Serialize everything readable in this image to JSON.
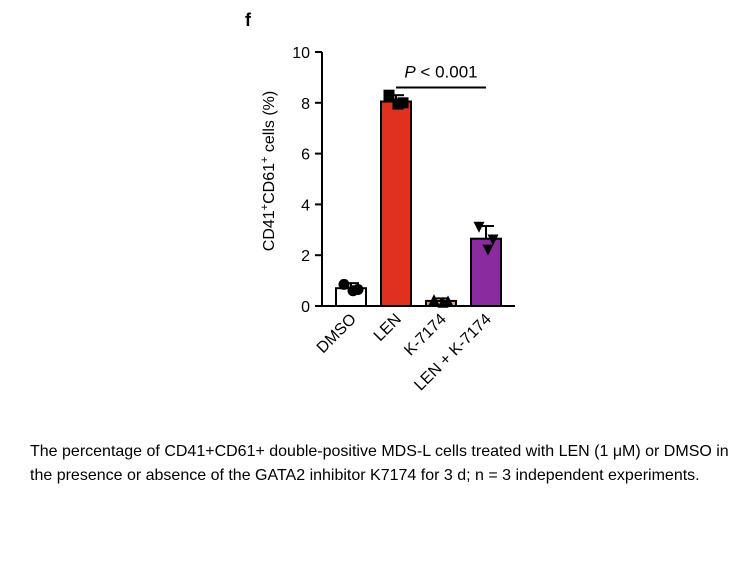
{
  "panel_label": "f",
  "caption": "The percentage of CD41+CD61+ double-positive MDS-L cells treated with LEN (1 μM) or DMSO in the presence or absence of the GATA2 inhibitor K7174 for 3 d; n = 3 independent experiments.",
  "chart_data": {
    "type": "bar",
    "title": "",
    "ylabel": {
      "main": "CD41",
      "sup1": "+",
      "mid": "CD61",
      "sup2": "+",
      "rest": " cells (%)"
    },
    "ylim": [
      0,
      10
    ],
    "yticks": [
      "0",
      "2",
      "4",
      "6",
      "8",
      "10"
    ],
    "categories": [
      "DMSO",
      "LEN",
      "K-7174",
      "LEN + K-7174"
    ],
    "values": [
      0.7,
      8.05,
      0.2,
      2.65
    ],
    "errors": [
      0.2,
      0.25,
      0.1,
      0.5
    ],
    "points": [
      [
        0.85,
        0.6,
        0.65
      ],
      [
        8.3,
        7.95,
        8.0
      ],
      [
        0.25,
        0.15,
        0.2
      ],
      [
        3.1,
        2.2,
        2.6
      ]
    ],
    "colors": [
      "#ffffff",
      "#e03020",
      "#e8a060",
      "#8b2ba0"
    ],
    "point_markers": [
      "circle",
      "square",
      "triangle",
      "triangle-down"
    ],
    "significance": {
      "from": 1,
      "to": 3,
      "y": 8.6,
      "label_italic": "P",
      "label_rest": " < 0.001"
    },
    "grid": false,
    "legend": "none"
  }
}
